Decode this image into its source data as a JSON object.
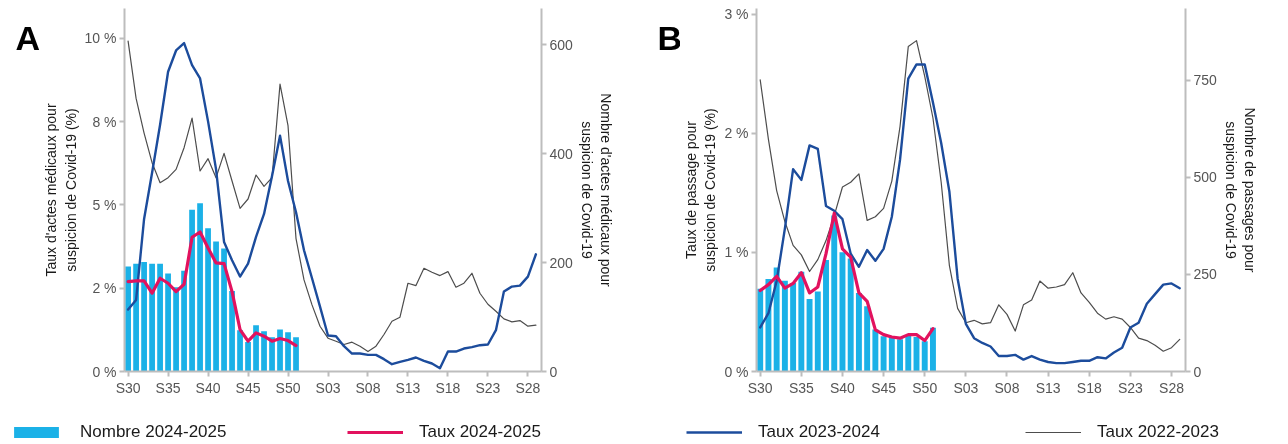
{
  "chart_data": [
    {
      "type": "line",
      "title": "A",
      "ylabel": "Taux d'actes médicaux pour suspicion de Covid-19 (%)",
      "y2label": "Nombre d'actes médicaux pour suspicion de Covid-19",
      "categories": [
        "S30",
        null,
        null,
        null,
        null,
        "S35",
        null,
        null,
        null,
        null,
        "S40",
        null,
        null,
        null,
        null,
        "S45",
        null,
        null,
        null,
        null,
        "S50",
        null,
        null,
        null,
        null,
        "S03",
        null,
        null,
        null,
        null,
        "S08",
        null,
        null,
        null,
        null,
        "S13",
        null,
        null,
        null,
        null,
        "S18",
        null,
        null,
        null,
        null,
        "S23",
        null,
        null,
        null,
        null,
        "S28",
        null
      ],
      "ylim": [
        0,
        10.9
      ],
      "yticks": [
        {
          "value": 0,
          "label": "0 %"
        },
        {
          "value": 2.5,
          "label": "2 %"
        },
        {
          "value": 5,
          "label": "5 %"
        },
        {
          "value": 7.5,
          "label": "8 %"
        },
        {
          "value": 10,
          "label": "10 %"
        }
      ],
      "y2lim": [
        0,
        667
      ],
      "y2ticks": [
        0,
        200,
        400,
        600
      ],
      "legend": "bottom",
      "series": [
        {
          "name": "Nombre 2024-2025",
          "type": "bar",
          "axis": "y2",
          "color": "#1bb1e7",
          "values": [
            193,
            198,
            201,
            198,
            198,
            180,
            155,
            185,
            297,
            309,
            263,
            239,
            226,
            148,
            76,
            54,
            85,
            74,
            63,
            77,
            72,
            63,
            null,
            null,
            null,
            null,
            null,
            null,
            null,
            null,
            null,
            null,
            null,
            null,
            null,
            null,
            null,
            null,
            null,
            null,
            null,
            null,
            null,
            null,
            null,
            null,
            null,
            null,
            null,
            null,
            null,
            null
          ]
        },
        {
          "name": "Taux 2024-2025",
          "color": "#e2125e",
          "values": [
            2.7,
            2.72,
            2.72,
            2.35,
            2.8,
            2.65,
            2.4,
            2.62,
            4.03,
            4.19,
            3.71,
            3.26,
            3.24,
            2.4,
            1.26,
            0.91,
            1.16,
            1.06,
            0.91,
            0.99,
            0.93,
            0.78,
            null,
            null,
            null,
            null,
            null,
            null,
            null,
            null,
            null,
            null,
            null,
            null,
            null,
            null,
            null,
            null,
            null,
            null,
            null,
            null,
            null,
            null,
            null,
            null,
            null,
            null,
            null,
            null,
            null,
            null
          ]
        },
        {
          "name": "Taux 2023-2024",
          "color": "#1c4c9c",
          "values": [
            1.86,
            2.15,
            4.58,
            5.97,
            7.41,
            9.0,
            9.64,
            9.86,
            9.2,
            8.8,
            7.51,
            6.07,
            3.89,
            3.34,
            2.85,
            3.24,
            4.04,
            4.73,
            5.87,
            7.08,
            5.72,
            4.78,
            3.64,
            2.8,
            1.95,
            1.08,
            1.06,
            0.76,
            0.54,
            0.54,
            0.5,
            0.5,
            0.37,
            0.22,
            0.29,
            0.35,
            0.42,
            0.32,
            0.24,
            0.1,
            0.6,
            0.6,
            0.69,
            0.73,
            0.79,
            0.81,
            1.24,
            2.4,
            2.55,
            2.58,
            2.85,
            3.52
          ]
        },
        {
          "name": "Taux 2022-2023",
          "color": "#4d4d4d",
          "values": [
            9.92,
            8.2,
            7.16,
            6.27,
            5.67,
            5.82,
            6.07,
            6.72,
            7.61,
            6.02,
            6.39,
            5.82,
            6.55,
            5.72,
            4.9,
            5.18,
            5.9,
            5.56,
            5.82,
            8.63,
            7.38,
            3.99,
            2.75,
            2.0,
            1.36,
            1.0,
            0.91,
            0.81,
            0.88,
            0.76,
            0.6,
            0.76,
            1.11,
            1.51,
            1.63,
            2.65,
            2.58,
            3.1,
            2.98,
            2.88,
            3.0,
            2.53,
            2.65,
            2.95,
            2.35,
            2.02,
            1.81,
            1.58,
            1.49,
            1.53,
            1.36,
            1.39
          ]
        }
      ]
    },
    {
      "type": "line",
      "title": "B",
      "ylabel": "Taux de passage pour suspicion de Covid-19 (%)",
      "y2label": "Nombre de passages pour suspicion de Covid-19",
      "categories": [
        "S30",
        null,
        null,
        null,
        null,
        "S35",
        null,
        null,
        null,
        null,
        "S40",
        null,
        null,
        null,
        null,
        "S45",
        null,
        null,
        null,
        null,
        "S50",
        null,
        null,
        null,
        null,
        "S03",
        null,
        null,
        null,
        null,
        "S08",
        null,
        null,
        null,
        null,
        "S13",
        null,
        null,
        null,
        null,
        "S18",
        null,
        null,
        null,
        null,
        "S23",
        null,
        null,
        null,
        null,
        "S28",
        null
      ],
      "ylim": [
        0,
        3.05
      ],
      "yticks": [
        {
          "value": 0,
          "label": "0 %"
        },
        {
          "value": 1,
          "label": "1 %"
        },
        {
          "value": 2,
          "label": "2 %"
        },
        {
          "value": 3,
          "label": "3 %"
        }
      ],
      "y2lim": [
        0,
        935
      ],
      "y2ticks": [
        0,
        250,
        500,
        750
      ],
      "series": [
        {
          "type": "bar",
          "axis": "y2",
          "color": "#1bb1e7",
          "values": [
            213,
            238,
            268,
            234,
            228,
            257,
            187,
            206,
            287,
            402,
            307,
            291,
            202,
            168,
            108,
            91,
            91,
            83,
            93,
            89,
            78,
            113,
            null,
            null,
            null,
            null,
            null,
            null,
            null,
            null,
            null,
            null,
            null,
            null,
            null,
            null,
            null,
            null,
            null,
            null,
            null,
            null,
            null,
            null,
            null,
            null,
            null,
            null,
            null,
            null,
            null,
            null
          ]
        },
        {
          "color": "#e2125e",
          "values": [
            0.68,
            0.73,
            0.8,
            0.7,
            0.74,
            0.83,
            0.66,
            0.71,
            0.99,
            1.33,
            1.03,
            0.96,
            0.66,
            0.59,
            0.35,
            0.31,
            0.29,
            0.28,
            0.31,
            0.31,
            0.26,
            0.36,
            null,
            null,
            null,
            null,
            null,
            null,
            null,
            null,
            null,
            null,
            null,
            null,
            null,
            null,
            null,
            null,
            null,
            null,
            null,
            null,
            null,
            null,
            null,
            null,
            null,
            null,
            null,
            null,
            null,
            null
          ]
        },
        {
          "color": "#1c4c9c",
          "values": [
            0.37,
            0.49,
            0.76,
            1.2,
            1.7,
            1.61,
            1.9,
            1.87,
            1.39,
            1.35,
            1.28,
            0.99,
            0.88,
            1.02,
            0.93,
            1.03,
            1.3,
            1.78,
            2.46,
            2.58,
            2.58,
            2.26,
            1.92,
            1.51,
            0.78,
            0.4,
            0.28,
            0.24,
            0.21,
            0.13,
            0.13,
            0.14,
            0.1,
            0.13,
            0.1,
            0.08,
            0.07,
            0.07,
            0.08,
            0.09,
            0.09,
            0.12,
            0.11,
            0.16,
            0.2,
            0.37,
            0.41,
            0.57,
            0.65,
            0.73,
            0.74,
            0.7
          ]
        },
        {
          "color": "#4d4d4d",
          "values": [
            2.45,
            1.95,
            1.52,
            1.26,
            1.06,
            0.98,
            0.84,
            0.94,
            1.1,
            1.31,
            1.55,
            1.59,
            1.66,
            1.27,
            1.3,
            1.37,
            1.6,
            2.06,
            2.73,
            2.78,
            2.48,
            2.13,
            1.59,
            0.89,
            0.53,
            0.41,
            0.43,
            0.4,
            0.41,
            0.56,
            0.48,
            0.34,
            0.56,
            0.6,
            0.76,
            0.7,
            0.71,
            0.73,
            0.83,
            0.66,
            0.58,
            0.49,
            0.44,
            0.46,
            0.44,
            0.37,
            0.28,
            0.26,
            0.22,
            0.17,
            0.2,
            0.27
          ]
        }
      ]
    }
  ]
}
